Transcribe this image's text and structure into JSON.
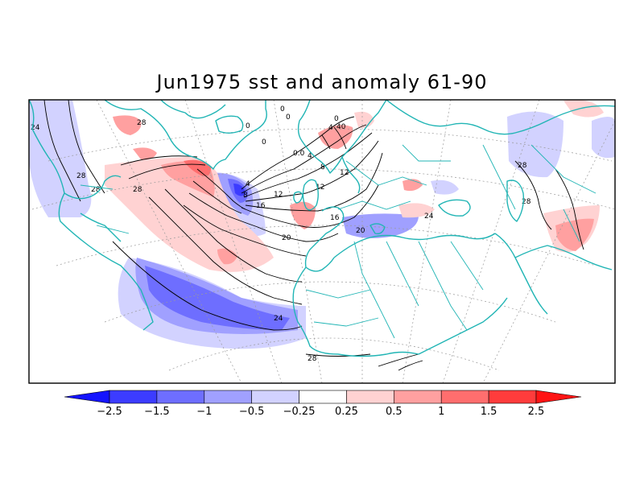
{
  "title": "Jun1975 sst and anomaly 61-90",
  "colors": {
    "coast": "#21b5b5",
    "contour": "#000000",
    "frame": "#000000",
    "graticule": "#9a9a9a"
  },
  "colorbar": {
    "bins": [
      "#1414ff",
      "#3c3cff",
      "#6e6eff",
      "#a0a0ff",
      "#d2d2ff",
      "#ffffff",
      "#ffd2d2",
      "#ffa0a0",
      "#ff6e6e",
      "#ff3c3c",
      "#ff1414"
    ],
    "tick_labels": [
      "-2.5",
      "-1.5",
      "-1",
      "-0.5",
      "-0.25",
      "0.25",
      "0.5",
      "1",
      "1.5",
      "2.5"
    ]
  },
  "contour_labels": [
    "0",
    "0",
    "0",
    "0",
    "0",
    "4",
    "40",
    "0.0",
    "4",
    "8",
    "12",
    "4",
    "12",
    "8",
    "12",
    "16",
    "16",
    "20",
    "20",
    "24",
    "24",
    "24",
    "28",
    "28",
    "28",
    "28",
    "28",
    "28",
    "28"
  ],
  "map": {
    "projection": "polar stereographic",
    "region": "North Atlantic, Europe, Middle East, North Africa"
  }
}
